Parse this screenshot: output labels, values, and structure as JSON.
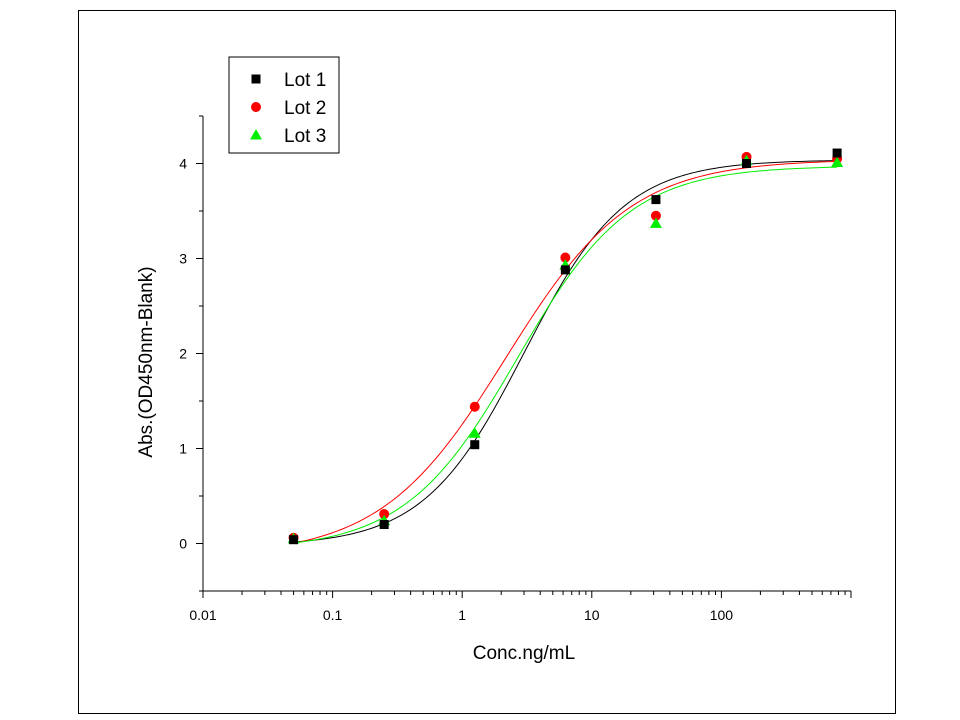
{
  "chart_data": {
    "type": "scatter",
    "title": "",
    "xlabel": "Conc.ng/mL",
    "ylabel": "Abs.(OD450nm-Blank)",
    "x_scale": "log",
    "xlim": [
      0.01,
      1000
    ],
    "ylim": [
      -0.5,
      4.5
    ],
    "x_ticks": [
      "0.01",
      "0.1",
      "1",
      "10",
      "100"
    ],
    "y_ticks": [
      "0",
      "1",
      "2",
      "3",
      "4"
    ],
    "x_tick_values": [
      0.01,
      0.1,
      1,
      10,
      100
    ],
    "y_tick_values": [
      0,
      1,
      2,
      3,
      4
    ],
    "legend_position": "top-left",
    "x": [
      0.05,
      0.25,
      1.25,
      6.25,
      31.25,
      156.25,
      781.25
    ],
    "series": [
      {
        "name": "Lot 1",
        "marker": "square",
        "color": "#000000",
        "values": [
          0.04,
          0.2,
          1.04,
          2.88,
          3.62,
          4.0,
          4.11
        ]
      },
      {
        "name": "Lot 2",
        "marker": "circle",
        "color": "#ff0000",
        "values": [
          0.06,
          0.31,
          1.44,
          3.01,
          3.45,
          4.07,
          4.05
        ]
      },
      {
        "name": "Lot 3",
        "marker": "triangle",
        "color": "#00ee00",
        "values": [
          0.05,
          0.24,
          1.16,
          2.93,
          3.37,
          4.03,
          4.01
        ]
      }
    ]
  }
}
